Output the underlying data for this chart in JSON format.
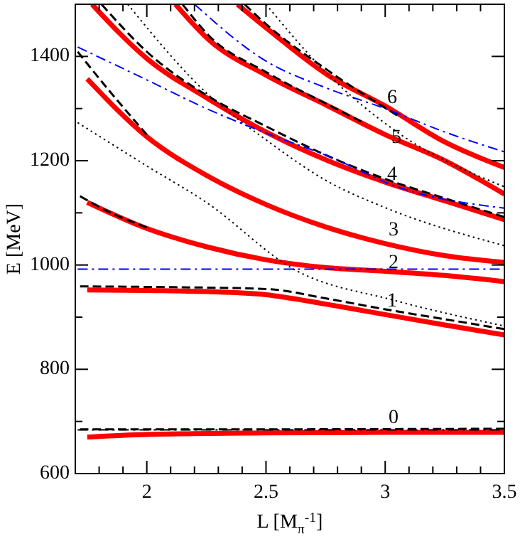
{
  "chart_data": {
    "type": "line",
    "xlabel": "L [M$_{π}$$^{-1}$]",
    "ylabel": "E [MeV]",
    "xlim": [
      1.7,
      3.5
    ],
    "ylim": [
      600,
      1500
    ],
    "xticks": [
      {
        "value": 1.8,
        "label": null
      },
      {
        "value": 1.9,
        "label": null
      },
      2,
      {
        "value": 2.1,
        "label": null
      },
      {
        "value": 2.2,
        "label": null
      },
      {
        "value": 2.3,
        "label": null
      },
      {
        "value": 2.4,
        "label": null
      },
      2.5,
      {
        "value": 2.6,
        "label": null
      },
      {
        "value": 2.7,
        "label": null
      },
      {
        "value": 2.8,
        "label": null
      },
      {
        "value": 2.9,
        "label": null
      },
      3,
      {
        "value": 3.1,
        "label": null
      },
      {
        "value": 3.2,
        "label": null
      },
      {
        "value": 3.3,
        "label": null
      },
      {
        "value": 3.4,
        "label": null
      },
      3.5
    ],
    "yticks": [
      600,
      {
        "value": 700,
        "label": null
      },
      800,
      {
        "value": 900,
        "label": null
      },
      1000,
      {
        "value": 1100,
        "label": null
      },
      1200,
      {
        "value": 1300,
        "label": null
      },
      1400
    ],
    "grid": false,
    "marker": "none",
    "series": [
      {
        "color": "#000000",
        "line_style": "dashed",
        "x": [
          1.72,
          2.5,
          3.5
        ],
        "values": [
          685,
          685,
          686
        ]
      },
      {
        "color": "#000000",
        "line_style": "dashed",
        "x": [
          1.72,
          2.0,
          2.5,
          2.75,
          3.0,
          3.25,
          3.5
        ],
        "values": [
          959,
          958,
          954,
          936,
          915,
          896,
          877
        ]
      },
      {
        "color": "#000000",
        "line_style": "dashed",
        "x": [
          1.72,
          1.85,
          2.0
        ],
        "values": [
          1132,
          1100,
          1072
        ]
      },
      {
        "color": "#000000",
        "line_style": "dashed",
        "x": [
          1.71,
          1.85,
          2.0
        ],
        "values": [
          1409,
          1330,
          1250
        ]
      },
      {
        "color": "#000000",
        "line_style": "dashed",
        "x": [
          1.81,
          2.0,
          2.26,
          2.5,
          2.76,
          3.0,
          3.25,
          3.5
        ],
        "values": [
          1500,
          1409,
          1323,
          1266,
          1209,
          1165,
          1128,
          1092
        ]
      },
      {
        "color": "#000000",
        "line_style": "dashed",
        "x": [
          2.15,
          2.26,
          2.5,
          2.75,
          2.9
        ],
        "values": [
          1500,
          1440,
          1370,
          1310,
          1275
        ]
      },
      {
        "color": "#000000",
        "line_style": "dashed",
        "x": [
          2.41,
          2.5,
          2.76,
          3.05
        ],
        "values": [
          1500,
          1462,
          1373,
          1287
        ]
      },
      {
        "color": "#000000",
        "line_style": "dotted",
        "x": [
          1.71,
          2.0,
          2.25,
          2.62,
          3.04,
          3.5
        ],
        "values": [
          1273,
          1190,
          1120,
          991,
          932,
          883
        ]
      },
      {
        "color": "#000000",
        "line_style": "dotted",
        "x": [
          1.92,
          2.25,
          2.5,
          2.76,
          3.0,
          3.5
        ],
        "values": [
          1500,
          1330,
          1240,
          1160,
          1110,
          1037
        ]
      },
      {
        "color": "#000000",
        "line_style": "dotted",
        "x": [
          2.5,
          2.75,
          3.05,
          3.5
        ],
        "values": [
          1500,
          1370,
          1255,
          1150
        ]
      },
      {
        "color": "#000000",
        "line_style": "dashdot",
        "x": [
          1.71,
          3.5
        ],
        "values": [
          684,
          684
        ]
      },
      {
        "color": "#0000ff",
        "line_style": "dashdot",
        "x": [
          1.71,
          3.5
        ],
        "values": [
          992,
          992
        ]
      },
      {
        "color": "#0000ff",
        "line_style": "dashdot",
        "x": [
          1.71,
          2.0,
          2.25,
          2.5,
          2.76,
          3.05,
          3.5
        ],
        "values": [
          1418,
          1355,
          1300,
          1253,
          1209,
          1150,
          1109
        ]
      },
      {
        "color": "#0000ff",
        "line_style": "dashdot",
        "x": [
          2.2,
          2.5,
          2.75,
          3.0,
          3.25,
          3.5
        ],
        "values": [
          1500,
          1391,
          1340,
          1300,
          1255,
          1217
        ]
      },
      {
        "color": "#ff0000",
        "line_style": "solid",
        "x": [
          1.75,
          2.0,
          2.5,
          3.0,
          3.5
        ],
        "values": [
          670,
          675,
          678,
          679,
          679
        ]
      },
      {
        "color": "#ff0000",
        "line_style": "solid",
        "x": [
          1.75,
          2.0,
          2.25,
          2.5,
          2.75,
          3.0,
          3.25,
          3.5
        ],
        "values": [
          952,
          951,
          949,
          943,
          925,
          905,
          885,
          866
        ]
      },
      {
        "color": "#ff0000",
        "line_style": "solid",
        "x": [
          1.75,
          2.0,
          2.25,
          2.5,
          2.75,
          3.0,
          3.25,
          3.5
        ],
        "values": [
          1120,
          1070,
          1035,
          1010,
          995,
          988,
          980,
          968
        ]
      },
      {
        "color": "#ff0000",
        "line_style": "solid",
        "x": [
          1.75,
          2.0,
          2.25,
          2.5,
          2.75,
          3.0,
          3.25,
          3.5
        ],
        "values": [
          1357,
          1246,
          1172,
          1116,
          1073,
          1041,
          1018,
          1005
        ]
      },
      {
        "color": "#ff0000",
        "line_style": "solid",
        "x": [
          1.77,
          2.0,
          2.26,
          2.5,
          2.76,
          3.0,
          3.25,
          3.5
        ],
        "values": [
          1500,
          1396,
          1318,
          1255,
          1200,
          1159,
          1123,
          1087
        ]
      },
      {
        "color": "#ff0000",
        "line_style": "solid",
        "x": [
          2.12,
          2.26,
          2.5,
          2.76,
          3.0,
          3.25,
          3.5
        ],
        "values": [
          1500,
          1432,
          1364,
          1305,
          1250,
          1200,
          1136
        ]
      },
      {
        "color": "#ff0000",
        "line_style": "solid",
        "x": [
          2.38,
          2.5,
          2.76,
          3.0,
          3.25,
          3.5
        ],
        "values": [
          1500,
          1455,
          1364,
          1305,
          1236,
          1187
        ]
      }
    ],
    "annotations": [
      "6",
      "5",
      "4",
      "3",
      "2",
      "1",
      "0"
    ]
  }
}
